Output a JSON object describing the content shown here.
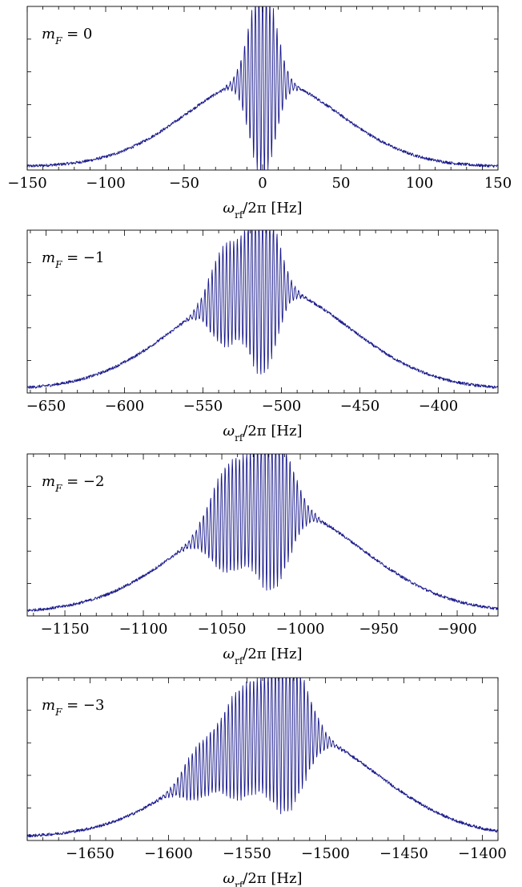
{
  "line_color": "#1a1a8c",
  "chart_data": [
    {
      "type": "line",
      "panel_label": {
        "var": "m",
        "sub": "F",
        "rest": " = 0"
      },
      "xlabel": {
        "var": "ω",
        "sub": "rf",
        "rest": "/2π [Hz]"
      },
      "xlim": [
        -150,
        150
      ],
      "ylim": [
        0,
        1
      ],
      "grid": false,
      "x_ticks": [
        -150,
        -100,
        -50,
        0,
        50,
        100,
        150
      ],
      "x_tick_labels": [
        "−150",
        "−100",
        "−50",
        "0",
        "50",
        "100",
        "150"
      ],
      "y_ticks": [],
      "center": 0,
      "half_width": 150,
      "envelope_sigma": 48,
      "envelope_peak": 0.56,
      "baseline": 0.02,
      "fringes": [
        {
          "offset": 0,
          "sigma": 8,
          "amplitude": 0.62,
          "period": 2.3
        }
      ]
    },
    {
      "type": "line",
      "panel_label": {
        "var": "m",
        "sub": "F",
        "rest": " = −1"
      },
      "xlabel": {
        "var": "ω",
        "sub": "rf",
        "rest": "/2π [Hz]"
      },
      "xlim": [
        -662,
        -362
      ],
      "ylim": [
        0,
        1
      ],
      "grid": false,
      "x_ticks": [
        -650,
        -600,
        -550,
        -500,
        -450,
        -400
      ],
      "x_tick_labels": [
        "−650",
        "−600",
        "−550",
        "−500",
        "−450",
        "−400"
      ],
      "y_ticks": [],
      "center": -512,
      "half_width": 150,
      "envelope_sigma": 54,
      "envelope_peak": 0.66,
      "baseline": 0.02,
      "fringes": [
        {
          "offset": 0,
          "sigma": 9,
          "amplitude": 0.55,
          "period": 2.3
        },
        {
          "offset": -24,
          "sigma": 9,
          "amplitude": 0.3,
          "period": 2.3
        }
      ]
    },
    {
      "type": "line",
      "panel_label": {
        "var": "m",
        "sub": "F",
        "rest": " = −2"
      },
      "xlabel": {
        "var": "ω",
        "sub": "rf",
        "rest": "/2π [Hz]"
      },
      "xlim": [
        -1174,
        -874
      ],
      "ylim": [
        0,
        1
      ],
      "grid": false,
      "x_ticks": [
        -1150,
        -1100,
        -1050,
        -1000,
        -950,
        -900
      ],
      "x_tick_labels": [
        "−1150",
        "−1100",
        "−1050",
        "−1000",
        "−950",
        "−900"
      ],
      "y_ticks": [],
      "center": -1018,
      "half_width": 150,
      "envelope_sigma": 56,
      "envelope_peak": 0.68,
      "baseline": 0.02,
      "fringes": [
        {
          "offset": 0,
          "sigma": 11,
          "amplitude": 0.52,
          "period": 2.3
        },
        {
          "offset": -28,
          "sigma": 11,
          "amplitude": 0.32,
          "period": 2.3
        }
      ]
    },
    {
      "type": "line",
      "panel_label": {
        "var": "m",
        "sub": "F",
        "rest": " = −3"
      },
      "xlabel": {
        "var": "ω",
        "sub": "rf",
        "rest": "/2π [Hz]"
      },
      "xlim": [
        -1690,
        -1390
      ],
      "ylim": [
        0,
        1
      ],
      "grid": false,
      "x_ticks": [
        -1650,
        -1600,
        -1550,
        -1500,
        -1450,
        -1400
      ],
      "x_tick_labels": [
        "−1650",
        "−1600",
        "−1550",
        "−1500",
        "−1450",
        "−1400"
      ],
      "y_ticks": [],
      "center": -1525,
      "half_width": 150,
      "envelope_sigma": 56,
      "envelope_peak": 0.68,
      "baseline": 0.02,
      "fringes": [
        {
          "offset": 0,
          "sigma": 12,
          "amplitude": 0.5,
          "period": 2.3
        },
        {
          "offset": -30,
          "sigma": 12,
          "amplitude": 0.32,
          "period": 2.3
        },
        {
          "offset": -57,
          "sigma": 9,
          "amplitude": 0.14,
          "period": 2.3
        }
      ]
    }
  ]
}
